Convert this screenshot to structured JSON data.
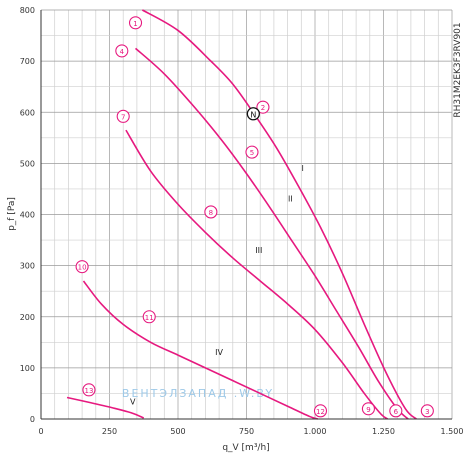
{
  "chart_data": {
    "type": "line",
    "side_label": "RH31M2EK3F3RV901",
    "xlabel": "q_V [m³/h]",
    "ylabel": "p_f [Pa]",
    "xlim": [
      0,
      1500
    ],
    "ylim": [
      0,
      800
    ],
    "x_major_step": 250,
    "y_major_step": 100,
    "x_tick_labels": [
      "0",
      "250",
      "500",
      "750",
      "1.000",
      "1.250",
      "1.500"
    ],
    "y_tick_labels": [
      "0",
      "100",
      "200",
      "300",
      "400",
      "500",
      "600",
      "700",
      "800"
    ],
    "grid": true,
    "curve_color": "#e6197f",
    "marker_color": "#e6197f",
    "watermark_text": "ВЕНТЭЛЗАПАД   .W.BY",
    "series": [
      {
        "name": "I",
        "label_at": [
          955,
          485
        ],
        "points": [
          [
            370,
            800
          ],
          [
            500,
            760
          ],
          [
            620,
            700
          ],
          [
            700,
            655
          ],
          [
            780,
            595
          ],
          [
            860,
            530
          ],
          [
            940,
            455
          ],
          [
            1020,
            375
          ],
          [
            1100,
            285
          ],
          [
            1180,
            185
          ],
          [
            1260,
            90
          ],
          [
            1330,
            20
          ],
          [
            1370,
            0
          ]
        ]
      },
      {
        "name": "II",
        "label_at": [
          910,
          425
        ],
        "points": [
          [
            345,
            725
          ],
          [
            450,
            675
          ],
          [
            560,
            610
          ],
          [
            660,
            545
          ],
          [
            750,
            480
          ],
          [
            840,
            410
          ],
          [
            920,
            345
          ],
          [
            1000,
            280
          ],
          [
            1080,
            210
          ],
          [
            1160,
            140
          ],
          [
            1230,
            75
          ],
          [
            1300,
            20
          ],
          [
            1340,
            0
          ]
        ]
      },
      {
        "name": "III",
        "label_at": [
          795,
          325
        ],
        "points": [
          [
            310,
            565
          ],
          [
            400,
            485
          ],
          [
            500,
            420
          ],
          [
            600,
            365
          ],
          [
            700,
            315
          ],
          [
            800,
            270
          ],
          [
            900,
            225
          ],
          [
            1000,
            175
          ],
          [
            1100,
            110
          ],
          [
            1180,
            50
          ],
          [
            1240,
            10
          ],
          [
            1265,
            0
          ]
        ]
      },
      {
        "name": "IV",
        "label_at": [
          650,
          125
        ],
        "points": [
          [
            155,
            270
          ],
          [
            220,
            225
          ],
          [
            300,
            185
          ],
          [
            400,
            150
          ],
          [
            500,
            125
          ],
          [
            600,
            100
          ],
          [
            700,
            75
          ],
          [
            800,
            50
          ],
          [
            900,
            25
          ],
          [
            980,
            5
          ],
          [
            1010,
            0
          ]
        ]
      },
      {
        "name": "V",
        "label_at": [
          335,
          28
        ],
        "points": [
          [
            95,
            42
          ],
          [
            180,
            32
          ],
          [
            260,
            22
          ],
          [
            330,
            12
          ],
          [
            375,
            2
          ]
        ]
      }
    ],
    "operating_point": {
      "label": "N",
      "q": 775,
      "p": 597
    },
    "markers": [
      {
        "label": "1",
        "q": 345,
        "p": 775
      },
      {
        "label": "2",
        "q": 810,
        "p": 610
      },
      {
        "label": "3",
        "q": 1410,
        "p": 16
      },
      {
        "label": "4",
        "q": 295,
        "p": 720
      },
      {
        "label": "5",
        "q": 770,
        "p": 522
      },
      {
        "label": "6",
        "q": 1295,
        "p": 16
      },
      {
        "label": "7",
        "q": 300,
        "p": 592
      },
      {
        "label": "8",
        "q": 620,
        "p": 405
      },
      {
        "label": "9",
        "q": 1195,
        "p": 20
      },
      {
        "label": "10",
        "q": 150,
        "p": 298
      },
      {
        "label": "11",
        "q": 395,
        "p": 200
      },
      {
        "label": "12",
        "q": 1020,
        "p": 16
      },
      {
        "label": "13",
        "q": 175,
        "p": 57
      }
    ]
  }
}
